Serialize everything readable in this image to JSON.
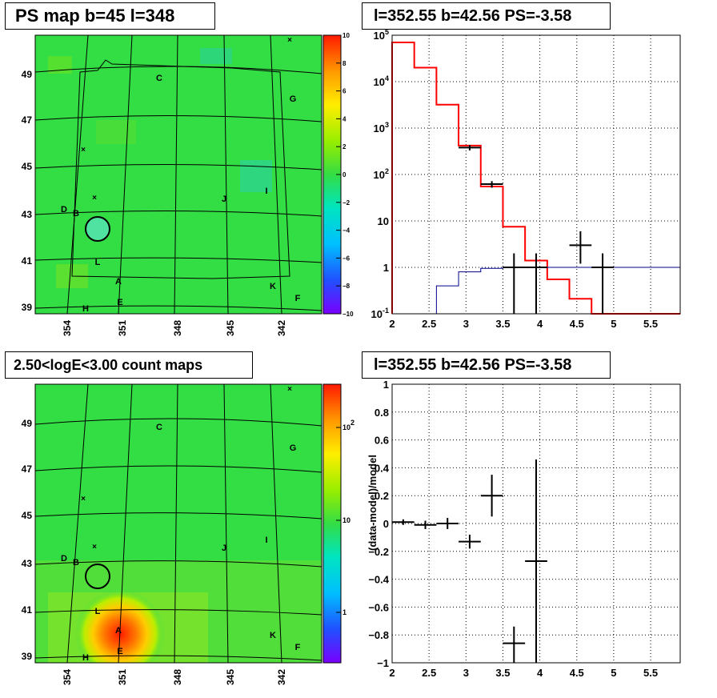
{
  "titles": {
    "ps_map": "PS map b=45 l=348",
    "spectrum": "l=352.55 b=42.56 PS=-3.58",
    "count_map": "2.50<logE<3.00 count maps",
    "residual": "l=352.55 b=42.56 PS=-3.58"
  },
  "colors": {
    "model_line": "#ff0000",
    "background_line": "#00008b",
    "data_marker": "#000000",
    "map_background": "#33dd44"
  },
  "chart_data": [
    {
      "type": "heatmap",
      "title": "PS map b=45 l=348",
      "x_ticks": [
        "354",
        "351",
        "348",
        "345",
        "342"
      ],
      "y_ticks": [
        "39",
        "41",
        "43",
        "45",
        "47",
        "49"
      ],
      "colorbar_ticks": [
        "10",
        "8",
        "6",
        "4",
        "2",
        "0",
        "−2",
        "−4",
        "−6",
        "−8",
        "−10"
      ],
      "colorbar_range": [
        -10,
        10
      ],
      "source_labels": [
        "C",
        "G",
        "D",
        "B",
        "J",
        "I",
        "L",
        "A",
        "K",
        "F",
        "E",
        "H"
      ],
      "markers": [
        "×",
        "×",
        "×"
      ]
    },
    {
      "type": "line",
      "title": "l=352.55 b=42.56 PS=-3.58",
      "y_scale": "log",
      "xlim": [
        2,
        5.9
      ],
      "ylim": [
        0.1,
        100000
      ],
      "x_ticks": [
        "2",
        "2.5",
        "3",
        "3.5",
        "4",
        "4.5",
        "5",
        "5.5"
      ],
      "y_ticks": [
        "10^-1",
        "1",
        "10",
        "10^2",
        "10^3",
        "10^4",
        "10^5"
      ],
      "grid": true,
      "series": [
        {
          "style": "step",
          "color": "#ff0000",
          "bin_edges": [
            2.0,
            2.3,
            2.6,
            2.9,
            3.2,
            3.5,
            3.8,
            4.1,
            4.4,
            4.7,
            5.0,
            5.9
          ],
          "values": [
            70000,
            20000,
            3200,
            420,
            55,
            7.5,
            1.4,
            0.55,
            0.21,
            0.1,
            0.1
          ]
        },
        {
          "style": "step",
          "color": "#00008b",
          "bin_edges": [
            2.6,
            2.9,
            3.2,
            3.5,
            5.9
          ],
          "values": [
            0.4,
            0.8,
            0.95,
            1.0
          ]
        },
        {
          "style": "error_cross",
          "color": "#000000",
          "points": [
            {
              "x": 3.05,
              "y": 380,
              "xerr": 0.15,
              "ylo": 330,
              "yhi": 430
            },
            {
              "x": 3.35,
              "y": 62,
              "xerr": 0.15,
              "ylo": 52,
              "yhi": 72
            },
            {
              "x": 3.65,
              "y": 1.0,
              "xerr": 0.15,
              "ylo": 0.1,
              "yhi": 2.0
            },
            {
              "x": 3.95,
              "y": 1.0,
              "xerr": 0.15,
              "ylo": 0.1,
              "yhi": 2.0
            },
            {
              "x": 4.55,
              "y": 3.0,
              "xerr": 0.15,
              "ylo": 1.2,
              "yhi": 6.0
            },
            {
              "x": 4.85,
              "y": 1.0,
              "xerr": 0.15,
              "ylo": 0.1,
              "yhi": 2.0
            }
          ]
        }
      ]
    },
    {
      "type": "heatmap",
      "title": "2.50<logE<3.00 count maps",
      "x_ticks": [
        "354",
        "351",
        "348",
        "345",
        "342"
      ],
      "y_ticks": [
        "39",
        "41",
        "43",
        "45",
        "47",
        "49"
      ],
      "colorbar_ticks": [
        "10^2",
        "10",
        "1"
      ],
      "colorbar_scale": "log",
      "source_labels": [
        "C",
        "G",
        "D",
        "B",
        "J",
        "I",
        "L",
        "A",
        "K",
        "F",
        "E",
        "H"
      ],
      "markers": [
        "×",
        "×",
        "×"
      ]
    },
    {
      "type": "scatter",
      "title": "l=352.55 b=42.56 PS=-3.58",
      "ylabel": "(data-model)/model",
      "xlim": [
        2,
        5.9
      ],
      "ylim": [
        -1,
        1
      ],
      "x_ticks": [
        "2",
        "2.5",
        "3",
        "3.5",
        "4",
        "4.5",
        "5",
        "5.5"
      ],
      "y_ticks": [
        "1",
        "0.8",
        "0.6",
        "0.4",
        "0.2",
        "0",
        "−0.2",
        "−0.4",
        "−0.6",
        "−0.8",
        "−1"
      ],
      "grid": true,
      "points": [
        {
          "x": 2.15,
          "y": 0.01,
          "xerr": 0.15,
          "ylo": -0.01,
          "yhi": 0.03
        },
        {
          "x": 2.45,
          "y": -0.01,
          "xerr": 0.15,
          "ylo": -0.04,
          "yhi": 0.02
        },
        {
          "x": 2.75,
          "y": 0.0,
          "xerr": 0.15,
          "ylo": -0.04,
          "yhi": 0.04
        },
        {
          "x": 3.05,
          "y": -0.13,
          "xerr": 0.15,
          "ylo": -0.18,
          "yhi": -0.08
        },
        {
          "x": 3.35,
          "y": 0.2,
          "xerr": 0.15,
          "ylo": 0.05,
          "yhi": 0.35
        },
        {
          "x": 3.65,
          "y": -0.86,
          "xerr": 0.15,
          "ylo": -1.0,
          "yhi": -0.74
        },
        {
          "x": 3.95,
          "y": -0.27,
          "xerr": 0.15,
          "ylo": -1.0,
          "yhi": 0.46
        }
      ]
    }
  ]
}
